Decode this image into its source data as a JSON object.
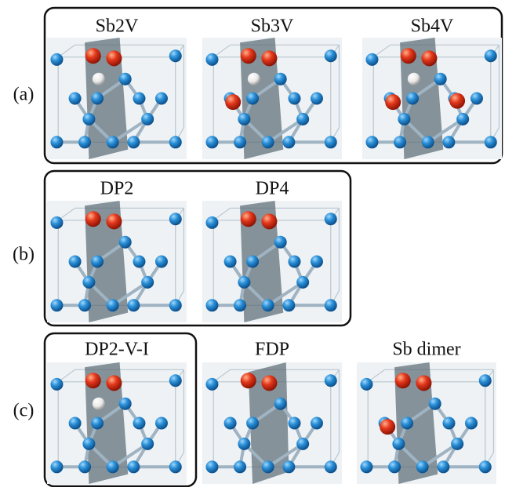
{
  "panels": [
    {
      "label": "(a)",
      "structures": [
        {
          "title": "Sb2V"
        },
        {
          "title": "Sb3V"
        },
        {
          "title": "Sb4V"
        }
      ]
    },
    {
      "label": "(b)",
      "structures": [
        {
          "title": "DP2"
        },
        {
          "title": "DP4"
        }
      ]
    },
    {
      "label": "(c)",
      "structures": [
        {
          "title": "DP2-V-I"
        },
        {
          "title": "FDP"
        },
        {
          "title": "Sb dimer"
        }
      ]
    }
  ]
}
